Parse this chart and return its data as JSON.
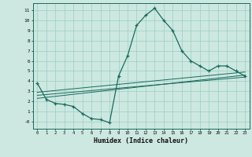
{
  "xlabel": "Humidex (Indice chaleur)",
  "background_color": "#cce8e0",
  "grid_color": "#9ecdc2",
  "line_color": "#1a6b5e",
  "xlim": [
    -0.5,
    23.5
  ],
  "ylim": [
    -0.7,
    11.7
  ],
  "xticks": [
    0,
    1,
    2,
    3,
    4,
    5,
    6,
    7,
    8,
    9,
    10,
    11,
    12,
    13,
    14,
    15,
    16,
    17,
    18,
    19,
    20,
    21,
    22,
    23
  ],
  "yticks": [
    0,
    1,
    2,
    3,
    4,
    5,
    6,
    7,
    8,
    9,
    10,
    11
  ],
  "ytick_labels": [
    "-0",
    "1",
    "2",
    "3",
    "4",
    "5",
    "6",
    "7",
    "8",
    "9",
    "10",
    "11"
  ],
  "main_line_x": [
    0,
    1,
    2,
    3,
    4,
    5,
    6,
    7,
    8,
    9,
    10,
    11,
    12,
    13,
    14,
    15,
    16,
    17,
    18,
    19,
    20,
    21,
    22,
    23
  ],
  "main_line_y": [
    3.8,
    2.2,
    1.8,
    1.7,
    1.5,
    0.8,
    0.3,
    0.2,
    -0.1,
    4.5,
    6.5,
    9.5,
    10.5,
    11.2,
    10.0,
    9.0,
    7.0,
    6.0,
    5.5,
    5.0,
    5.5,
    5.5,
    5.0,
    4.5
  ],
  "reg_line1_x": [
    0,
    23
  ],
  "reg_line1_y": [
    2.9,
    4.9
  ],
  "reg_line2_x": [
    0,
    23
  ],
  "reg_line2_y": [
    2.6,
    4.4
  ],
  "reg_line3_x": [
    0,
    23
  ],
  "reg_line3_y": [
    2.3,
    4.6
  ]
}
